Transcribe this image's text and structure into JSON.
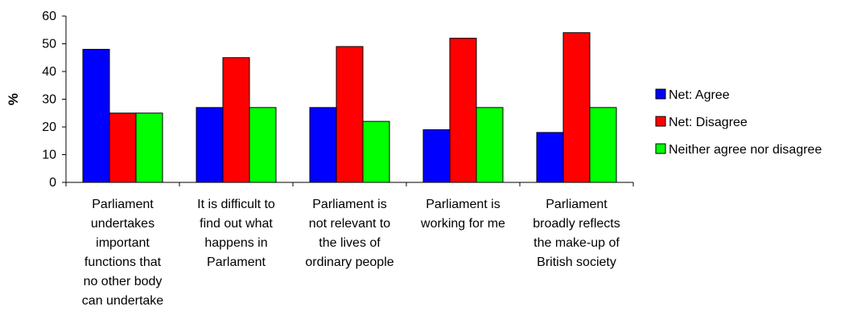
{
  "chart_data": {
    "type": "bar",
    "title": "",
    "xlabel": "",
    "ylabel": "%",
    "ylim": [
      0,
      60
    ],
    "yticks": [
      0,
      10,
      20,
      30,
      40,
      50,
      60
    ],
    "grid": false,
    "legend_position": "right",
    "categories": [
      "Parliament undertakes important functions that no other body can undertake",
      "It is difficult to find out what happens in Parlament",
      "Parliament is not relevant to the lives of ordinary people",
      "Parliament is working for me",
      "Parliament broadly reflects the make-up of British society"
    ],
    "category_lines": [
      [
        "Parliament",
        "undertakes",
        "important",
        "functions that",
        "no other body",
        "can undertake"
      ],
      [
        "It is difficult to",
        "find out what",
        "happens in",
        "Parlament"
      ],
      [
        "Parliament is",
        "not relevant to",
        "the lives of",
        "ordinary people"
      ],
      [
        "Parliament is",
        "working for me"
      ],
      [
        "Parliament",
        "broadly reflects",
        "the make-up of",
        "British society"
      ]
    ],
    "series": [
      {
        "name": "Net: Agree",
        "color": "#0000ff",
        "values": [
          48,
          27,
          27,
          19,
          18
        ]
      },
      {
        "name": "Net: Disagree",
        "color": "#ff0000",
        "values": [
          25,
          45,
          49,
          52,
          54
        ]
      },
      {
        "name": "Neither agree nor disagree",
        "color": "#00ff00",
        "values": [
          25,
          27,
          22,
          27,
          27
        ]
      }
    ]
  }
}
